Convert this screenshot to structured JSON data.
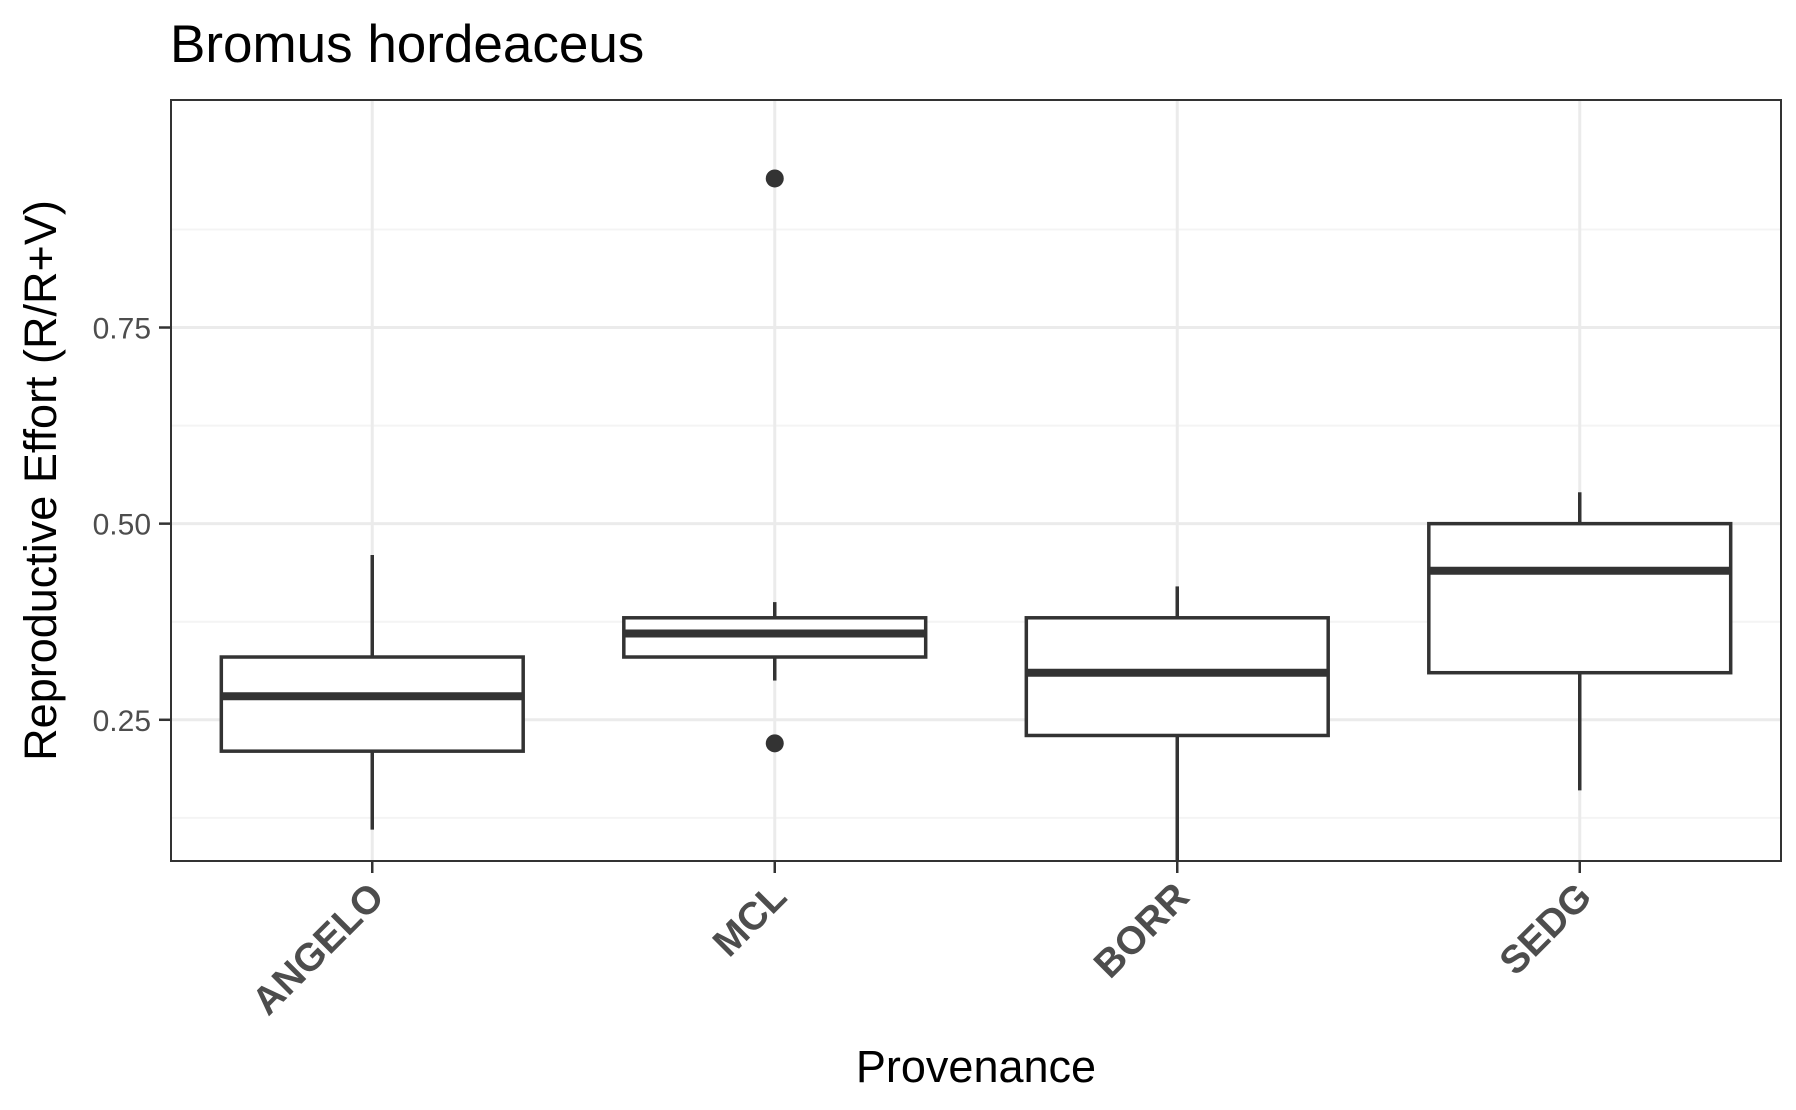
{
  "chart_data": {
    "type": "boxplot",
    "title": "Bromus hordeaceus",
    "xlabel": "Provenance",
    "ylabel": "Reproductive Effort (R/R+V)",
    "ylim": [
      0.07,
      1.04
    ],
    "yticks": [
      0.25,
      0.5,
      0.75
    ],
    "ytick_labels": [
      "0.25",
      "0.50",
      "0.75"
    ],
    "y_minor_ticks": [
      0.125,
      0.375,
      0.625,
      0.875
    ],
    "grid": true,
    "theme": "bw",
    "categories": [
      "ANGELO",
      "MCL",
      "BORR",
      "SEDG"
    ],
    "boxes": [
      {
        "category": "ANGELO",
        "whisker_low": 0.11,
        "q1": 0.21,
        "median": 0.28,
        "q3": 0.33,
        "whisker_high": 0.46,
        "outliers": []
      },
      {
        "category": "MCL",
        "whisker_low": 0.3,
        "q1": 0.33,
        "median": 0.36,
        "q3": 0.38,
        "whisker_high": 0.4,
        "outliers": [
          0.22,
          0.94
        ]
      },
      {
        "category": "BORR",
        "whisker_low": 0.07,
        "q1": 0.23,
        "median": 0.31,
        "q3": 0.38,
        "whisker_high": 0.42,
        "outliers": []
      },
      {
        "category": "SEDG",
        "whisker_low": 0.16,
        "q1": 0.31,
        "median": 0.44,
        "q3": 0.5,
        "whisker_high": 0.54,
        "outliers": []
      }
    ],
    "colors": {
      "box_stroke": "#333333",
      "box_fill": "#ffffff",
      "grid_major": "#ebebeb",
      "grid_minor": "#f4f4f4",
      "panel_border": "#333333",
      "tick_label": "#4d4d4d"
    }
  }
}
